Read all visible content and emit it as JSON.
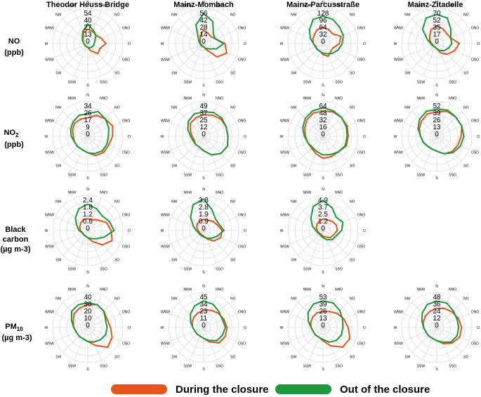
{
  "columns": [
    "Theodor Heuss Bridge",
    "Mainz-Mombach",
    "Mainz-Parcusstraße",
    "Mainz-Zitadelle"
  ],
  "rows": [
    {
      "line1": "NO",
      "line2": "(ppb)"
    },
    {
      "line1": "NO",
      "line1_sub": "2",
      "line2": "(ppb)"
    },
    {
      "line1": "Black",
      "line2": "carbon",
      "line3": "(µg m-3)"
    },
    {
      "line1": "PM",
      "line1_sub": "10",
      "line2": "(µg m-3)"
    }
  ],
  "directions": [
    "N",
    "NNO",
    "NO",
    "ONO",
    "O",
    "OSO",
    "SO",
    "SSO",
    "S",
    "SSW",
    "SW",
    "WSW",
    "W",
    "WNW",
    "NW",
    "NNW"
  ],
  "legend": {
    "during_label": "During the closure",
    "out_label": "Out of the closure",
    "during_color": "#e8531a",
    "out_color": "#1a9a3c"
  },
  "chart_data": [
    {
      "type": "radar",
      "pollutant": "NO",
      "station": "Theodor Heuss Bridge",
      "rings": [
        "54",
        "40",
        "27",
        "13",
        "0"
      ],
      "rmax": 54,
      "during": [
        22,
        20,
        18,
        22,
        28,
        20,
        22,
        12,
        6,
        5,
        5,
        5,
        6,
        8,
        10,
        18
      ],
      "out": [
        30,
        22,
        18,
        12,
        10,
        9,
        8,
        7,
        6,
        5,
        5,
        5,
        6,
        8,
        12,
        20
      ]
    },
    {
      "type": "radar",
      "pollutant": "NO",
      "station": "Mainz-Mombach",
      "rings": [
        "56",
        "42",
        "28",
        "14",
        "0"
      ],
      "rmax": 56,
      "during": [
        22,
        18,
        16,
        20,
        34,
        40,
        30,
        10,
        5,
        5,
        4,
        4,
        5,
        6,
        8,
        14
      ],
      "out": [
        48,
        38,
        22,
        20,
        32,
        22,
        12,
        8,
        5,
        5,
        5,
        5,
        6,
        8,
        12,
        32
      ]
    },
    {
      "type": "radar",
      "pollutant": "NO",
      "station": "Mainz-Parcusstraße",
      "rings": [
        "128",
        "96",
        "64",
        "32",
        "0"
      ],
      "rmax": 128,
      "during": [
        60,
        55,
        50,
        70,
        60,
        40,
        40,
        50,
        40,
        30,
        30,
        28,
        35,
        40,
        45,
        55
      ],
      "out": [
        100,
        95,
        85,
        80,
        70,
        60,
        50,
        40,
        35,
        30,
        30,
        30,
        35,
        50,
        70,
        95
      ]
    },
    {
      "type": "radar",
      "pollutant": "NO",
      "station": "Mainz-Zitadelle",
      "rings": [
        "70",
        "52",
        "35",
        "17",
        "0"
      ],
      "rmax": 70,
      "during": [
        35,
        32,
        28,
        30,
        45,
        38,
        30,
        20,
        10,
        8,
        8,
        8,
        10,
        15,
        20,
        30
      ],
      "out": [
        58,
        55,
        40,
        30,
        30,
        25,
        20,
        15,
        10,
        8,
        8,
        10,
        12,
        20,
        40,
        55
      ]
    },
    {
      "type": "radar",
      "pollutant": "NO2",
      "station": "Theodor Heuss Bridge",
      "rings": [
        "34",
        "26",
        "17",
        "9",
        "0"
      ],
      "rmax": 34,
      "during": [
        18,
        22,
        24,
        26,
        24,
        22,
        22,
        20,
        16,
        14,
        14,
        14,
        14,
        16,
        18,
        18
      ],
      "out": [
        22,
        26,
        24,
        22,
        20,
        20,
        20,
        18,
        16,
        14,
        14,
        14,
        16,
        18,
        20,
        22
      ]
    },
    {
      "type": "radar",
      "pollutant": "NO2",
      "station": "Mainz-Mombach",
      "rings": [
        "49",
        "37",
        "25",
        "12",
        "0"
      ],
      "rmax": 49,
      "during": [
        30,
        32,
        34,
        34,
        34,
        36,
        34,
        28,
        20,
        16,
        16,
        14,
        16,
        20,
        26,
        28
      ],
      "out": [
        34,
        36,
        36,
        34,
        34,
        36,
        34,
        28,
        20,
        16,
        16,
        16,
        18,
        24,
        30,
        34
      ]
    },
    {
      "type": "radar",
      "pollutant": "NO2",
      "station": "Mainz-Parcusstraße",
      "rings": [
        "64",
        "48",
        "32",
        "16",
        "0"
      ],
      "rmax": 64,
      "during": [
        46,
        48,
        48,
        48,
        46,
        46,
        40,
        40,
        40,
        34,
        30,
        30,
        32,
        36,
        42,
        46
      ],
      "out": [
        52,
        50,
        48,
        46,
        44,
        44,
        40,
        36,
        34,
        30,
        28,
        30,
        34,
        40,
        46,
        50
      ]
    },
    {
      "type": "radar",
      "pollutant": "NO2",
      "station": "Mainz-Zitadelle",
      "rings": [
        "52",
        "39",
        "26",
        "13",
        "0"
      ],
      "rmax": 52,
      "during": [
        36,
        40,
        40,
        40,
        36,
        34,
        32,
        28,
        22,
        20,
        20,
        22,
        24,
        28,
        32,
        36
      ],
      "out": [
        40,
        42,
        40,
        40,
        40,
        38,
        34,
        28,
        22,
        20,
        20,
        22,
        24,
        30,
        36,
        40
      ]
    },
    {
      "type": "radar",
      "pollutant": "Black carbon",
      "station": "Theodor Heuss Bridge",
      "rings": [
        "2.4",
        "1.8",
        "1.2",
        "0.6",
        "0"
      ],
      "rmax": 2.4,
      "during": [
        0.8,
        0.8,
        1.0,
        1.4,
        1.6,
        1.8,
        1.4,
        0.8,
        0.5,
        0.4,
        0.4,
        0.4,
        0.5,
        0.6,
        0.7,
        0.8
      ],
      "out": [
        1.8,
        1.6,
        1.4,
        1.6,
        1.8,
        1.2,
        0.8,
        0.6,
        0.5,
        0.4,
        0.4,
        0.4,
        0.6,
        0.8,
        1.2,
        1.6
      ]
    },
    {
      "type": "radar",
      "pollutant": "Black carbon",
      "station": "Mainz-Mombach",
      "rings": [
        "3.8",
        "2.8",
        "1.9",
        "0.9",
        "0"
      ],
      "rmax": 3.8,
      "during": [
        1.2,
        1.2,
        1.4,
        1.6,
        2.0,
        2.0,
        1.6,
        1.0,
        0.6,
        0.5,
        0.5,
        0.5,
        0.6,
        0.8,
        1.0,
        1.1
      ],
      "out": [
        3.4,
        2.4,
        1.8,
        1.8,
        2.2,
        1.6,
        1.2,
        0.9,
        0.7,
        0.6,
        0.6,
        0.6,
        0.8,
        1.2,
        2.0,
        3.0
      ]
    },
    {
      "type": "radar",
      "pollutant": "Black carbon",
      "station": "Mainz-Parcusstraße",
      "rings": [
        "4.9",
        "3.7",
        "2.5",
        "1.2",
        "0"
      ],
      "rmax": 4.9,
      "during": [
        1.6,
        1.6,
        1.8,
        2.0,
        2.0,
        1.6,
        1.4,
        1.0,
        0.8,
        0.6,
        0.6,
        0.7,
        0.8,
        1.0,
        1.2,
        1.4
      ],
      "out": [
        4.2,
        3.4,
        2.6,
        3.0,
        2.6,
        2.0,
        1.8,
        1.4,
        1.0,
        0.8,
        0.7,
        0.8,
        1.0,
        1.6,
        2.4,
        3.6
      ]
    },
    {
      "type": "radar",
      "pollutant": "PM10",
      "station": "Theodor Heuss Bridge",
      "rings": [
        "40",
        "30",
        "20",
        "10",
        "0"
      ],
      "rmax": 40,
      "during": [
        26,
        28,
        26,
        24,
        26,
        30,
        32,
        22,
        16,
        14,
        14,
        14,
        16,
        18,
        22,
        24
      ],
      "out": [
        28,
        28,
        26,
        22,
        22,
        22,
        20,
        18,
        16,
        14,
        14,
        14,
        16,
        20,
        26,
        28
      ]
    },
    {
      "type": "radar",
      "pollutant": "PM10",
      "station": "Mainz-Mombach",
      "rings": [
        "45",
        "34",
        "23",
        "11",
        "0"
      ],
      "rmax": 45,
      "during": [
        22,
        24,
        26,
        28,
        30,
        30,
        28,
        20,
        14,
        12,
        12,
        12,
        14,
        16,
        18,
        20
      ],
      "out": [
        34,
        32,
        28,
        26,
        28,
        26,
        24,
        18,
        14,
        12,
        12,
        12,
        14,
        18,
        24,
        30
      ]
    },
    {
      "type": "radar",
      "pollutant": "PM10",
      "station": "Mainz-Parcusstraße",
      "rings": [
        "53",
        "39",
        "26",
        "13",
        "0"
      ],
      "rmax": 53,
      "during": [
        24,
        26,
        30,
        34,
        38,
        44,
        42,
        30,
        20,
        16,
        16,
        16,
        18,
        20,
        22,
        24
      ],
      "out": [
        40,
        40,
        36,
        32,
        30,
        30,
        28,
        24,
        18,
        16,
        16,
        16,
        18,
        24,
        32,
        38
      ]
    },
    {
      "type": "radar",
      "pollutant": "PM10",
      "station": "Mainz-Zitadelle",
      "rings": [
        "48",
        "36",
        "24",
        "12",
        "0"
      ],
      "rmax": 48,
      "during": [
        26,
        28,
        30,
        32,
        34,
        34,
        30,
        24,
        18,
        16,
        16,
        16,
        18,
        20,
        22,
        24
      ],
      "out": [
        36,
        36,
        32,
        30,
        30,
        30,
        28,
        22,
        18,
        16,
        16,
        16,
        18,
        22,
        28,
        34
      ]
    }
  ]
}
